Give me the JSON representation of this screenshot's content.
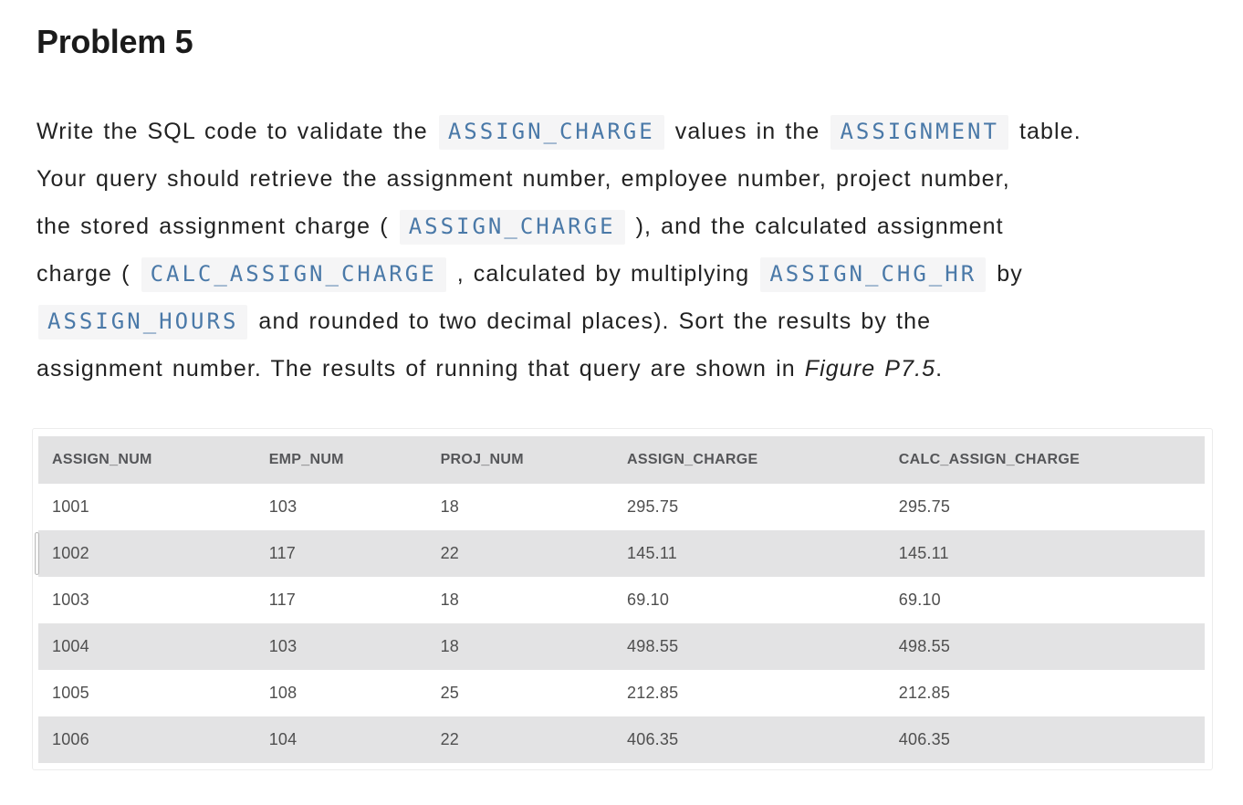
{
  "page": {
    "title": "Problem 5"
  },
  "paragraph": {
    "lines": [
      [
        {
          "type": "text",
          "text": "Write the SQL code to validate the "
        },
        {
          "type": "code",
          "text": "ASSIGN_CHARGE"
        },
        {
          "type": "text",
          "text": " values in the "
        },
        {
          "type": "code",
          "text": "ASSIGNMENT"
        },
        {
          "type": "text",
          "text": " table."
        }
      ],
      [
        {
          "type": "text",
          "text": "Your query should retrieve the assignment number, employee number, project number,"
        }
      ],
      [
        {
          "type": "text",
          "text": "the stored assignment charge ( "
        },
        {
          "type": "code",
          "text": "ASSIGN_CHARGE"
        },
        {
          "type": "text",
          "text": " ), and the calculated assignment"
        }
      ],
      [
        {
          "type": "text",
          "text": "charge ( "
        },
        {
          "type": "code",
          "text": "CALC_ASSIGN_CHARGE"
        },
        {
          "type": "text",
          "text": " , calculated by multiplying "
        },
        {
          "type": "code",
          "text": "ASSIGN_CHG_HR"
        },
        {
          "type": "text",
          "text": " by"
        }
      ],
      [
        {
          "type": "code",
          "text": "ASSIGN_HOURS"
        },
        {
          "type": "text",
          "text": " and rounded to two decimal places). Sort the results by the"
        }
      ],
      [
        {
          "type": "text",
          "text": "assignment number. The results of running that query are shown in "
        },
        {
          "type": "italic",
          "text": "Figure P7.5"
        },
        {
          "type": "text",
          "text": "."
        }
      ]
    ]
  },
  "table": {
    "columns": [
      "ASSIGN_NUM",
      "EMP_NUM",
      "PROJ_NUM",
      "ASSIGN_CHARGE",
      "CALC_ASSIGN_CHARGE"
    ],
    "rows": [
      [
        "1001",
        "103",
        "18",
        "295.75",
        "295.75"
      ],
      [
        "1002",
        "117",
        "22",
        "145.11",
        "145.11"
      ],
      [
        "1003",
        "117",
        "18",
        "69.10",
        "69.10"
      ],
      [
        "1004",
        "103",
        "18",
        "498.55",
        "498.55"
      ],
      [
        "1005",
        "108",
        "25",
        "212.85",
        "212.85"
      ],
      [
        "1006",
        "104",
        "22",
        "406.35",
        "406.35"
      ]
    ]
  },
  "colors": {
    "inline_code_text": "#4a79a8",
    "inline_code_bg": "#f5f5f6",
    "table_header_bg": "#e2e2e3",
    "table_stripe_bg": "#e3e3e4",
    "body_text": "#1f1f1f",
    "table_text": "#4f4f4f"
  }
}
